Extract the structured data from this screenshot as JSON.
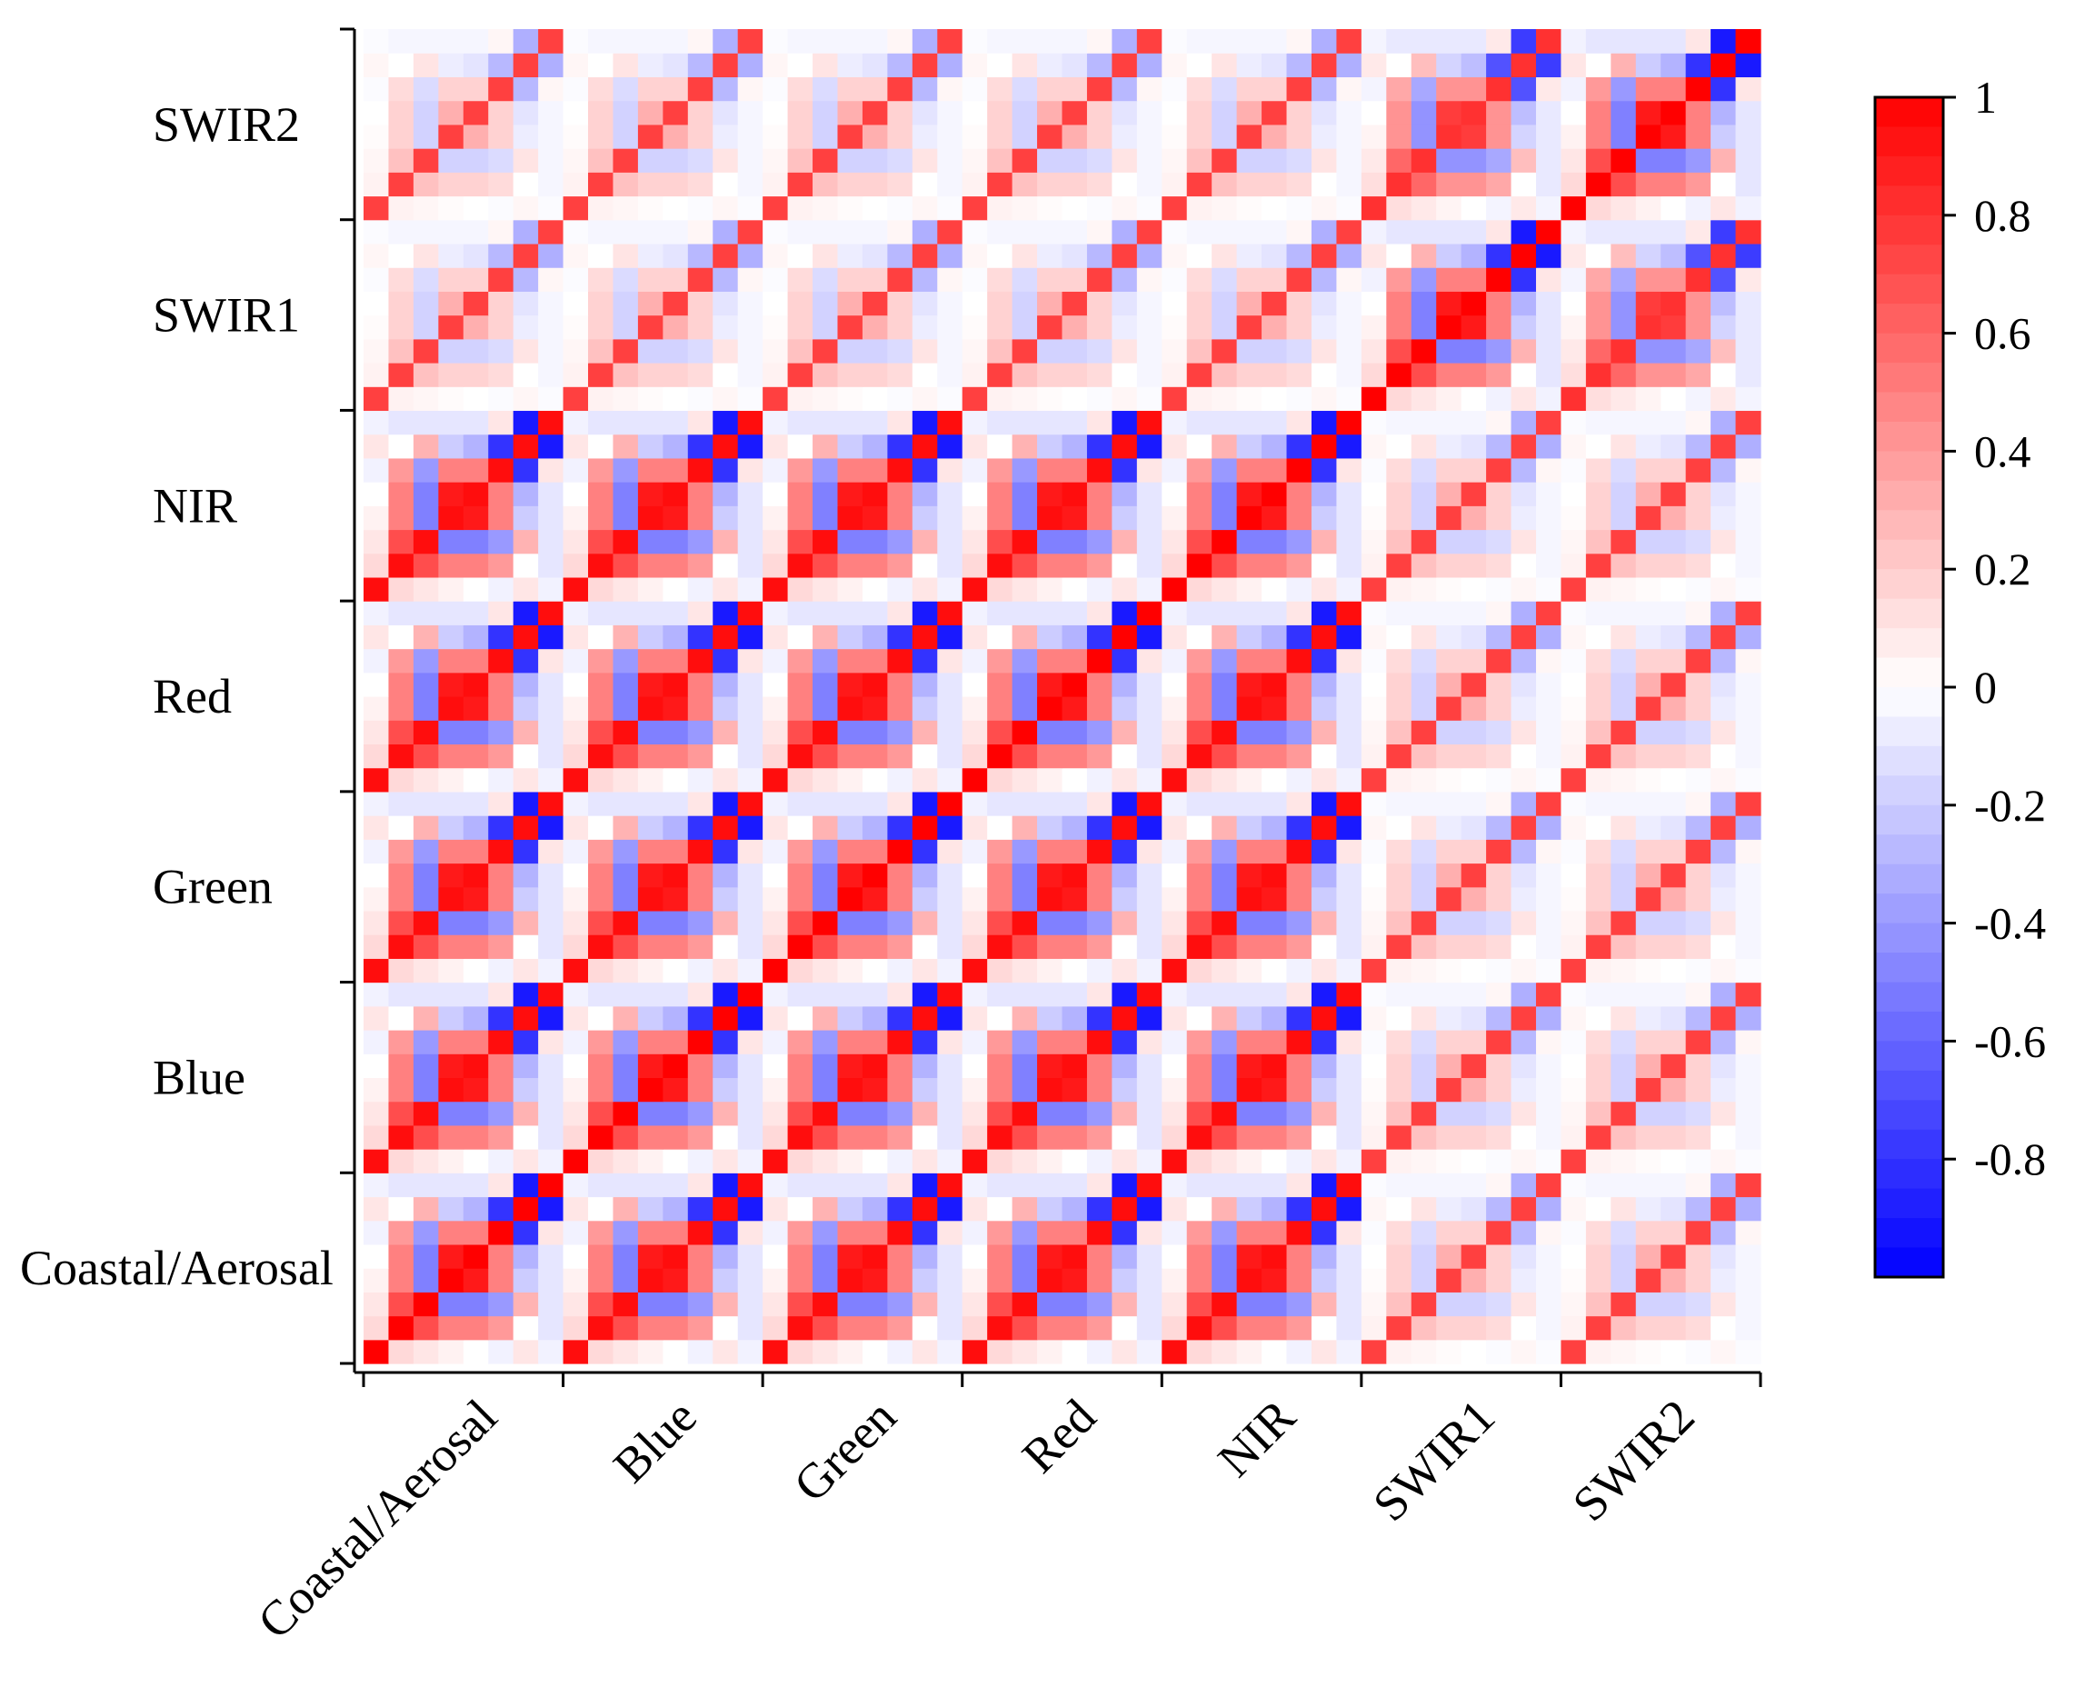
{
  "chart_data": {
    "type": "heatmap",
    "title": "",
    "xlabel": "",
    "ylabel": "",
    "x_categories": [
      "Coastal/Aerosal",
      "Blue",
      "Green",
      "Red",
      "NIR",
      "SWIR1",
      "SWIR2"
    ],
    "y_categories": [
      "Coastal/Aerosal",
      "Blue",
      "Green",
      "Red",
      "NIR",
      "SWIR1",
      "SWIR2"
    ],
    "cells_per_category": 8,
    "grid_size": 56,
    "colorbar": {
      "min": -1,
      "max": 1,
      "ticks": [
        1,
        0.8,
        0.6,
        0.4,
        0.2,
        0,
        -0.2,
        -0.4,
        -0.6,
        -0.8
      ],
      "tick_labels": [
        "1",
        "0.8",
        "0.6",
        "0.4",
        "0.2",
        "0",
        "-0.2",
        "-0.4",
        "-0.6",
        "-0.8"
      ],
      "colors": {
        "negative": "#0000ff",
        "zero": "#ffffff",
        "positive": "#ff0000"
      }
    },
    "block_strength": [
      [
        1.0,
        1.0,
        1.0,
        1.0,
        1.0,
        0.35,
        0.35
      ],
      [
        1.0,
        1.0,
        1.0,
        1.0,
        1.0,
        0.35,
        0.35
      ],
      [
        1.0,
        1.0,
        1.0,
        1.0,
        1.0,
        0.35,
        0.35
      ],
      [
        1.0,
        1.0,
        1.0,
        1.0,
        1.0,
        0.35,
        0.35
      ],
      [
        1.0,
        1.0,
        1.0,
        1.0,
        1.0,
        0.35,
        0.35
      ],
      [
        0.35,
        0.35,
        0.35,
        0.35,
        0.35,
        1.0,
        0.85
      ],
      [
        0.35,
        0.35,
        0.35,
        0.35,
        0.35,
        0.85,
        1.0
      ]
    ],
    "within_block_pattern": [
      [
        1.0,
        0.15,
        0.1,
        0.05,
        0.0,
        -0.05,
        0.1,
        -0.05
      ],
      [
        0.15,
        1.0,
        0.7,
        0.5,
        0.5,
        0.4,
        0.0,
        -0.1
      ],
      [
        0.1,
        0.7,
        1.0,
        -0.5,
        -0.5,
        -0.4,
        0.3,
        -0.1
      ],
      [
        0.05,
        0.5,
        -0.5,
        1.0,
        0.9,
        0.5,
        -0.2,
        -0.1
      ],
      [
        0.0,
        0.5,
        -0.5,
        0.9,
        1.0,
        0.5,
        -0.3,
        -0.1
      ],
      [
        -0.05,
        0.4,
        -0.4,
        0.5,
        0.5,
        1.0,
        -0.8,
        0.1
      ],
      [
        0.1,
        0.0,
        0.3,
        -0.2,
        -0.3,
        -0.8,
        1.0,
        -0.9
      ],
      [
        -0.05,
        -0.1,
        -0.1,
        -0.1,
        -0.1,
        0.1,
        -0.9,
        1.0
      ]
    ]
  }
}
